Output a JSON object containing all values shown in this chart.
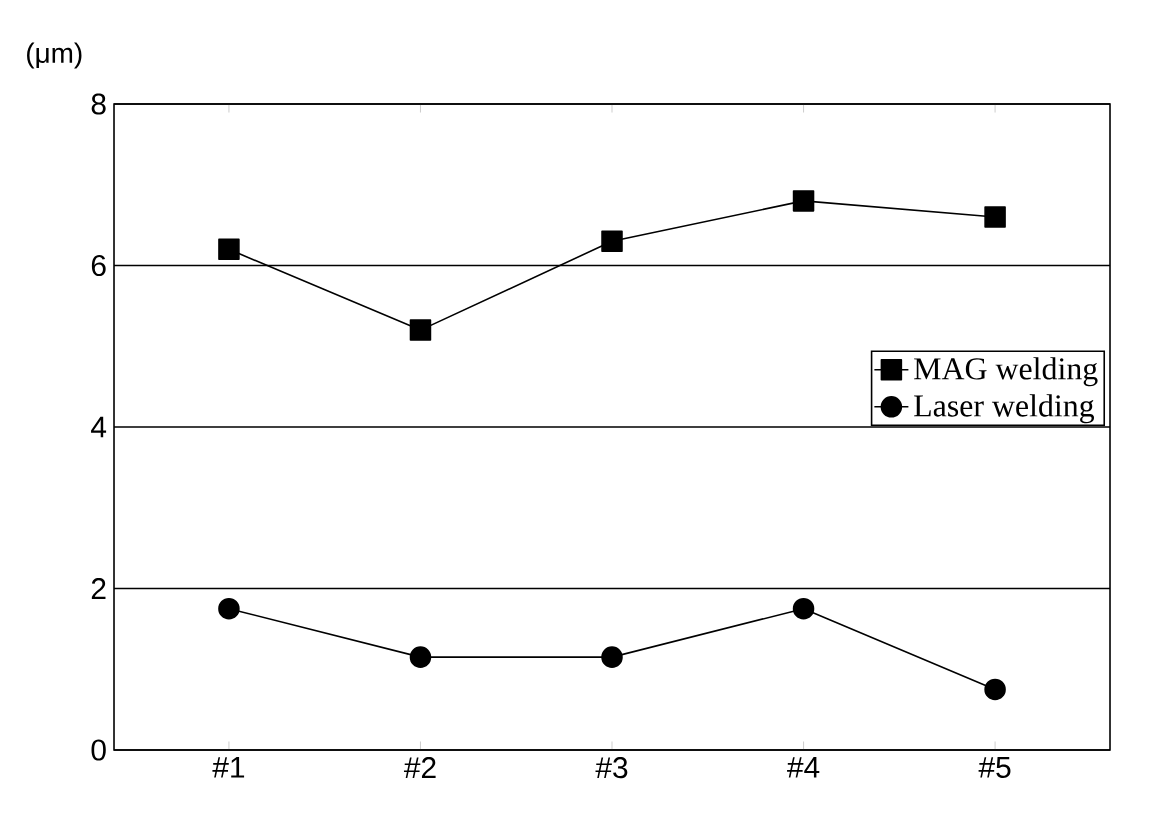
{
  "chart_data": {
    "type": "line",
    "ylabel": "(μm)",
    "categories": [
      "#1",
      "#2",
      "#3",
      "#4",
      "#5"
    ],
    "series": [
      {
        "name": "MAG welding",
        "color": "#000000",
        "marker": "square",
        "values": [
          6.2,
          5.2,
          6.3,
          6.8,
          6.6
        ]
      },
      {
        "name": "Laser welding",
        "color": "#000000",
        "marker": "circle",
        "values": [
          1.75,
          1.15,
          1.15,
          1.75,
          0.75
        ]
      }
    ],
    "ylim": [
      0,
      8
    ],
    "yticks": [
      0,
      2,
      4,
      6,
      8
    ],
    "grid": "y",
    "legend": "right",
    "line_style": "solid"
  }
}
